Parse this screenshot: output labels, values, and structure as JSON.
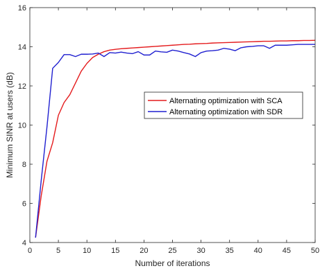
{
  "chart_data": {
    "type": "line",
    "xlabel": "Number of iterations",
    "ylabel": "Minimum SINR at users (dB)",
    "xlim": [
      0,
      50
    ],
    "ylim": [
      4,
      16
    ],
    "xticks": [
      0,
      5,
      10,
      15,
      20,
      25,
      30,
      35,
      40,
      45,
      50
    ],
    "yticks": [
      4,
      6,
      8,
      10,
      12,
      14,
      16
    ],
    "grid": false,
    "legend_position": "middle-right",
    "series": [
      {
        "name": "Alternating optimization with SCA",
        "color": "#e41a1c",
        "x": [
          1,
          2,
          3,
          4,
          5,
          6,
          7,
          8,
          9,
          10,
          11,
          12,
          13,
          14,
          15,
          16,
          17,
          18,
          19,
          20,
          21,
          22,
          23,
          24,
          25,
          26,
          27,
          28,
          29,
          30,
          31,
          32,
          33,
          34,
          35,
          36,
          37,
          38,
          39,
          40,
          41,
          42,
          43,
          44,
          45,
          46,
          47,
          48,
          49,
          50
        ],
        "y": [
          4.25,
          6.4,
          8.15,
          9.1,
          10.5,
          11.15,
          11.55,
          12.15,
          12.75,
          13.15,
          13.45,
          13.62,
          13.75,
          13.83,
          13.87,
          13.9,
          13.92,
          13.94,
          13.96,
          13.98,
          14.0,
          14.02,
          14.04,
          14.06,
          14.08,
          14.1,
          14.12,
          14.13,
          14.15,
          14.16,
          14.17,
          14.19,
          14.2,
          14.21,
          14.22,
          14.23,
          14.24,
          14.25,
          14.26,
          14.27,
          14.28,
          14.28,
          14.29,
          14.3,
          14.3,
          14.31,
          14.31,
          14.32,
          14.32,
          14.33
        ]
      },
      {
        "name": "Alternating optimization with SDR",
        "color": "#1f1fd0",
        "x": [
          1,
          2,
          3,
          4,
          5,
          6,
          7,
          8,
          9,
          10,
          11,
          12,
          13,
          14,
          15,
          16,
          17,
          18,
          19,
          20,
          21,
          22,
          23,
          24,
          25,
          26,
          27,
          28,
          29,
          30,
          31,
          32,
          33,
          34,
          35,
          36,
          37,
          38,
          39,
          40,
          41,
          42,
          43,
          44,
          45,
          46,
          47,
          48,
          49,
          50
        ],
        "y": [
          4.25,
          7.2,
          9.9,
          12.9,
          13.2,
          13.6,
          13.6,
          13.5,
          13.62,
          13.62,
          13.63,
          13.68,
          13.5,
          13.7,
          13.68,
          13.73,
          13.68,
          13.65,
          13.75,
          13.58,
          13.58,
          13.78,
          13.74,
          13.72,
          13.83,
          13.78,
          13.7,
          13.63,
          13.5,
          13.7,
          13.78,
          13.8,
          13.83,
          13.92,
          13.88,
          13.8,
          13.95,
          14.0,
          14.02,
          14.05,
          14.05,
          13.92,
          14.08,
          14.08,
          14.08,
          14.1,
          14.12,
          14.12,
          14.12,
          14.12
        ]
      }
    ]
  }
}
